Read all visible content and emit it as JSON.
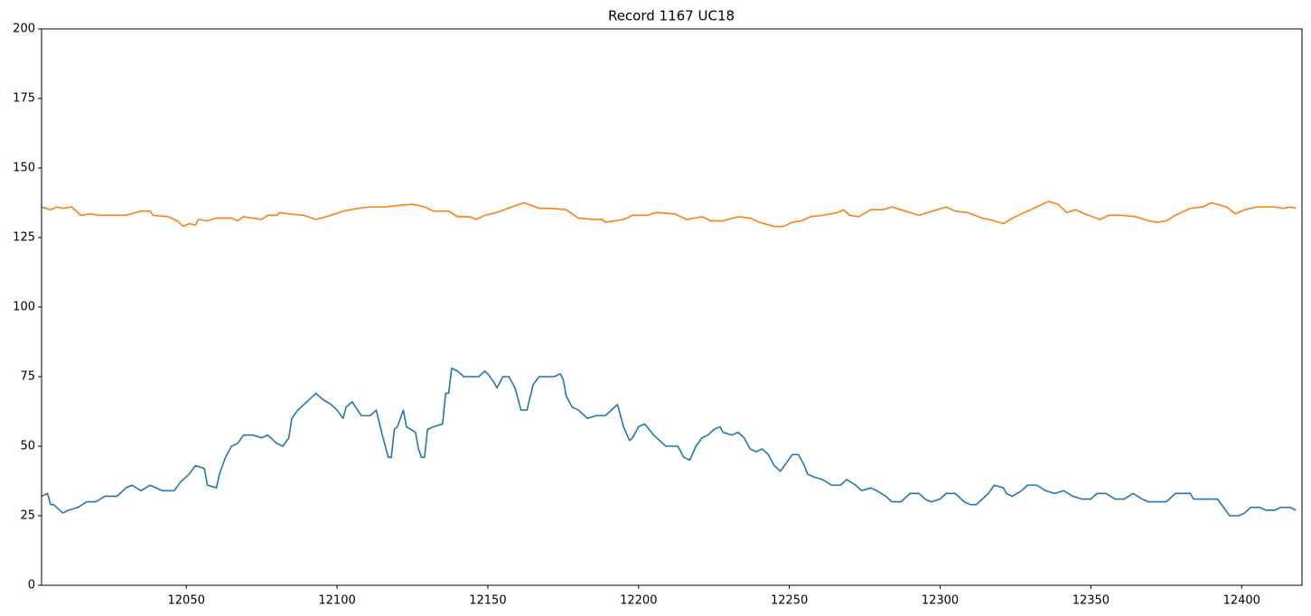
{
  "chart_data": {
    "type": "line",
    "title": "Record 1167 UC18",
    "xlim": [
      12002,
      12420
    ],
    "ylim": [
      0,
      200
    ],
    "xticks": [
      12050,
      12100,
      12150,
      12200,
      12250,
      12300,
      12350,
      12400
    ],
    "yticks": [
      0,
      25,
      50,
      75,
      100,
      125,
      150,
      175,
      200
    ],
    "grid": false,
    "series": [
      {
        "color": "#1f77b4",
        "x": [
          12002,
          12004,
          12005,
          12006,
          12008,
          12009,
          12011,
          12014,
          12017,
          12020,
          12023,
          12027,
          12030,
          12032,
          12035,
          12038,
          12042,
          12046,
          12048,
          12051,
          12053,
          12056,
          12057,
          12060,
          12061,
          12063,
          12065,
          12067,
          12069,
          12072,
          12075,
          12077,
          12078,
          12080,
          12082,
          12084,
          12085,
          12087,
          12089,
          12090,
          12092,
          12093,
          12095,
          12098,
          12100,
          12102,
          12103,
          12105,
          12108,
          12111,
          12113,
          12115,
          12117,
          12118,
          12119,
          12120,
          12122,
          12123,
          12126,
          12127,
          12128,
          12129,
          12130,
          12132,
          12135,
          12136,
          12137,
          12138,
          12140,
          12142,
          12147,
          12149,
          12150,
          12152,
          12153,
          12155,
          12157,
          12159,
          12161,
          12163,
          12165,
          12167,
          12172,
          12174,
          12175,
          12176,
          12178,
          12180,
          12183,
          12186,
          12189,
          12192,
          12193,
          12195,
          12197,
          12198,
          12200,
          12202,
          12205,
          12209,
          12213,
          12215,
          12217,
          12219,
          12221,
          12223,
          12225,
          12227,
          12228,
          12231,
          12233,
          12235,
          12237,
          12239,
          12241,
          12243,
          12245,
          12247,
          12249,
          12251,
          12253,
          12255,
          12256,
          12258,
          12261,
          12264,
          12267,
          12269,
          12272,
          12274,
          12277,
          12279,
          12282,
          12284,
          12287,
          12290,
          12293,
          12295,
          12297,
          12300,
          12302,
          12305,
          12308,
          12310,
          12312,
          12314,
          12316,
          12318,
          12321,
          12322,
          12324,
          12327,
          12329,
          12332,
          12335,
          12338,
          12341,
          12344,
          12347,
          12350,
          12352,
          12355,
          12358,
          12361,
          12364,
          12367,
          12369,
          12375,
          12378,
          12383,
          12384,
          12392,
          12394,
          12396,
          12399,
          12401,
          12403,
          12406,
          12408,
          12411,
          12413,
          12416,
          12418
        ],
        "values": [
          32,
          33,
          29,
          29,
          27,
          26,
          27,
          28,
          30,
          30,
          32,
          32,
          35,
          36,
          34,
          36,
          34,
          34,
          37,
          40,
          43,
          42,
          36,
          35,
          40,
          46,
          50,
          51,
          54,
          54,
          53,
          54,
          53,
          51,
          50,
          53,
          60,
          63,
          65,
          66,
          68,
          69,
          67,
          65,
          63,
          60,
          64,
          66,
          61,
          61,
          63,
          54,
          46,
          46,
          56,
          57,
          63,
          57,
          55,
          49,
          46,
          46,
          56,
          57,
          58,
          69,
          69,
          78,
          77,
          75,
          75,
          77,
          76,
          73,
          71,
          75,
          75,
          71,
          63,
          63,
          72,
          75,
          75,
          76,
          74,
          68,
          64,
          63,
          60,
          61,
          61,
          64,
          65,
          57,
          52,
          53,
          57,
          58,
          54,
          50,
          50,
          46,
          45,
          50,
          53,
          54,
          56,
          57,
          55,
          54,
          55,
          53,
          49,
          48,
          49,
          47,
          43,
          41,
          44,
          47,
          47,
          43,
          40,
          39,
          38,
          36,
          36,
          38,
          36,
          34,
          35,
          34,
          32,
          30,
          30,
          33,
          33,
          31,
          30,
          31,
          33,
          33,
          30,
          29,
          29,
          31,
          33,
          36,
          35,
          33,
          32,
          34,
          36,
          36,
          34,
          33,
          34,
          32,
          31,
          31,
          33,
          33,
          31,
          31,
          33,
          31,
          30,
          30,
          33,
          33,
          31,
          31,
          28,
          25,
          25,
          26,
          28,
          28,
          27,
          27,
          28,
          28,
          27
        ]
      },
      {
        "color": "#ff7f0e",
        "x": [
          12002,
          12005,
          12007,
          12009,
          12012,
          12015,
          12018,
          12021,
          12024,
          12027,
          12030,
          12035,
          12038,
          12039,
          12044,
          12047,
          12049,
          12051,
          12053,
          12054,
          12057,
          12060,
          12065,
          12067,
          12069,
          12072,
          12075,
          12077,
          12080,
          12081,
          12084,
          12089,
          12093,
          12098,
          12102,
          12107,
          12111,
          12116,
          12120,
          12125,
          12129,
          12132,
          12137,
          12140,
          12144,
          12146,
          12149,
          12153,
          12158,
          12162,
          12167,
          12171,
          12176,
          12180,
          12185,
          12188,
          12189,
          12192,
          12195,
          12198,
          12203,
          12206,
          12212,
          12216,
          12221,
          12224,
          12228,
          12233,
          12237,
          12240,
          12245,
          12248,
          12251,
          12254,
          12257,
          12261,
          12266,
          12268,
          12270,
          12273,
          12277,
          12281,
          12284,
          12287,
          12290,
          12293,
          12296,
          12299,
          12302,
          12305,
          12309,
          12314,
          12318,
          12321,
          12324,
          12327,
          12332,
          12336,
          12339,
          12342,
          12345,
          12348,
          12353,
          12356,
          12360,
          12365,
          12369,
          12372,
          12375,
          12378,
          12383,
          12387,
          12390,
          12395,
          12398,
          12401,
          12405,
          12411,
          12414,
          12416,
          12418
        ],
        "values": [
          136,
          135,
          136,
          135.5,
          136,
          133,
          133.5,
          133,
          133,
          133,
          133,
          134.5,
          134.5,
          133,
          132.5,
          131,
          129,
          130,
          129.5,
          131.5,
          131,
          132,
          132,
          131,
          132.5,
          132,
          131.5,
          133,
          133,
          134,
          133.5,
          133,
          131.5,
          133,
          134.5,
          135.5,
          136,
          136,
          136.5,
          137,
          136,
          134.5,
          134.5,
          132.5,
          132.5,
          131.5,
          133,
          134,
          136,
          137.5,
          135.5,
          135.5,
          135,
          132,
          131.5,
          131.5,
          130.5,
          131,
          131.5,
          133,
          133,
          134,
          133.5,
          131.5,
          132.5,
          131,
          131,
          132.5,
          132,
          130.5,
          129,
          129,
          130.5,
          131,
          132.5,
          133,
          134,
          135,
          133,
          132.5,
          135,
          135,
          136,
          135,
          134,
          133,
          134,
          135,
          136,
          134.5,
          134,
          132,
          131,
          130,
          132,
          133.5,
          136,
          138,
          137,
          134,
          135,
          133.5,
          131.5,
          133,
          133,
          132.5,
          131,
          130.5,
          131,
          133,
          135.5,
          136,
          137.5,
          136,
          133.5,
          135,
          136,
          136,
          135.5,
          136,
          135.5
        ]
      }
    ]
  }
}
